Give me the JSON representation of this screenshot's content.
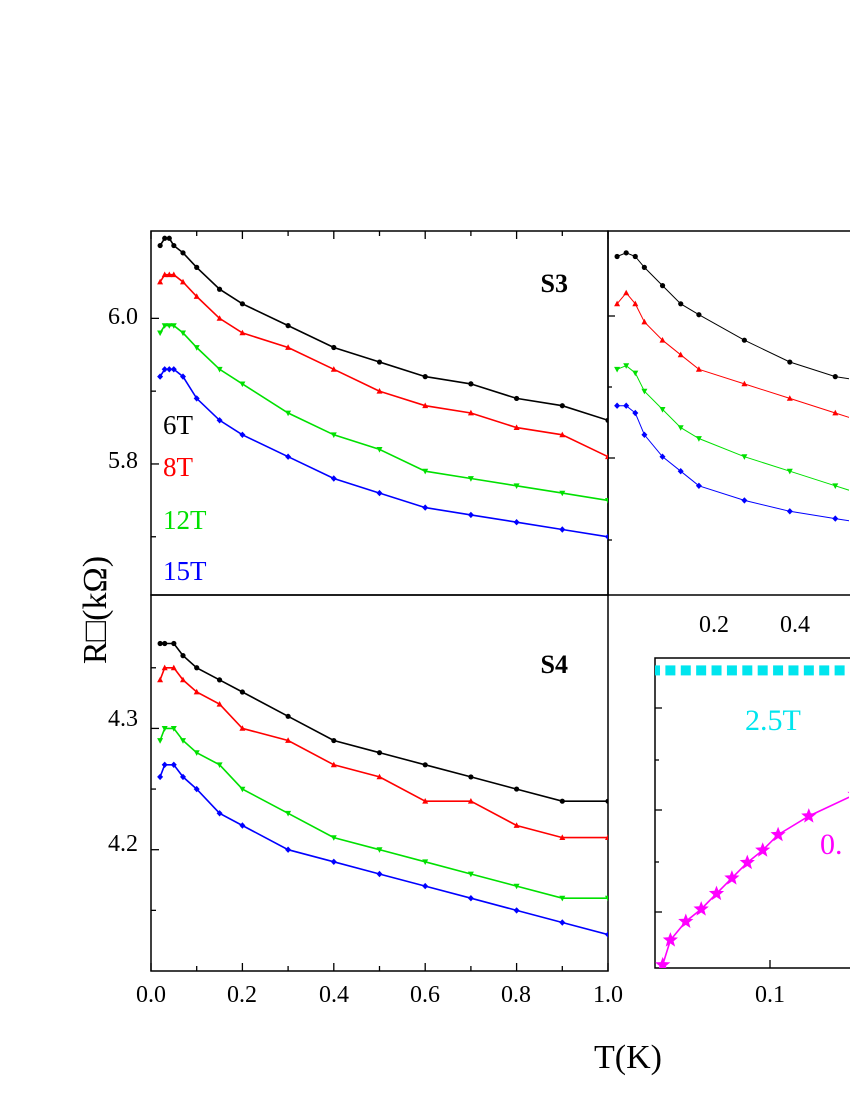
{
  "chart_data": [
    {
      "type": "line",
      "panel_label": "S3",
      "xlabel": "T(K)",
      "ylabel": "R□(kΩ)",
      "xlim": [
        0.0,
        1.0
      ],
      "ylim": [
        5.62,
        6.12
      ],
      "yticks": [
        "6.0",
        "5.8"
      ],
      "xticks": [
        "0.0",
        "0.2",
        "0.4",
        "0.6",
        "0.8",
        "1.0"
      ],
      "legend_position": "left",
      "series": [
        {
          "name": "6T",
          "color": "#000000",
          "marker": "circle",
          "x": [
            0.02,
            0.03,
            0.04,
            0.05,
            0.07,
            0.1,
            0.15,
            0.2,
            0.3,
            0.4,
            0.5,
            0.6,
            0.7,
            0.8,
            0.9,
            1.0
          ],
          "y": [
            6.1,
            6.11,
            6.11,
            6.1,
            6.09,
            6.07,
            6.04,
            6.02,
            5.99,
            5.96,
            5.94,
            5.92,
            5.91,
            5.89,
            5.88,
            5.86
          ]
        },
        {
          "name": "8T",
          "color": "#ff0000",
          "marker": "triangle-up",
          "x": [
            0.02,
            0.03,
            0.04,
            0.05,
            0.07,
            0.1,
            0.15,
            0.2,
            0.3,
            0.4,
            0.5,
            0.6,
            0.7,
            0.8,
            0.9,
            1.0
          ],
          "y": [
            6.05,
            6.06,
            6.06,
            6.06,
            6.05,
            6.03,
            6.0,
            5.98,
            5.96,
            5.93,
            5.9,
            5.88,
            5.87,
            5.85,
            5.84,
            5.81
          ]
        },
        {
          "name": "12T",
          "color": "#00e000",
          "marker": "triangle-down",
          "x": [
            0.02,
            0.03,
            0.04,
            0.05,
            0.07,
            0.1,
            0.15,
            0.2,
            0.3,
            0.4,
            0.5,
            0.6,
            0.7,
            0.8,
            0.9,
            1.0
          ],
          "y": [
            5.98,
            5.99,
            5.99,
            5.99,
            5.98,
            5.96,
            5.93,
            5.91,
            5.87,
            5.84,
            5.82,
            5.79,
            5.78,
            5.77,
            5.76,
            5.75
          ]
        },
        {
          "name": "15T",
          "color": "#0000ff",
          "marker": "diamond",
          "x": [
            0.02,
            0.03,
            0.04,
            0.05,
            0.07,
            0.1,
            0.15,
            0.2,
            0.3,
            0.4,
            0.5,
            0.6,
            0.7,
            0.8,
            0.9,
            1.0
          ],
          "y": [
            5.92,
            5.93,
            5.93,
            5.93,
            5.92,
            5.89,
            5.86,
            5.84,
            5.81,
            5.78,
            5.76,
            5.74,
            5.73,
            5.72,
            5.71,
            5.7
          ]
        }
      ]
    },
    {
      "type": "line",
      "panel_label": "S4",
      "xlim": [
        0.0,
        1.0
      ],
      "ylim": [
        4.1,
        4.41
      ],
      "yticks": [
        "4.3",
        "4.2"
      ],
      "series": [
        {
          "name": "6T",
          "color": "#000000",
          "marker": "circle",
          "x": [
            0.02,
            0.03,
            0.05,
            0.07,
            0.1,
            0.15,
            0.2,
            0.3,
            0.4,
            0.5,
            0.6,
            0.7,
            0.8,
            0.9,
            1.0
          ],
          "y": [
            4.37,
            4.37,
            4.37,
            4.36,
            4.35,
            4.34,
            4.33,
            4.31,
            4.29,
            4.28,
            4.27,
            4.26,
            4.25,
            4.24,
            4.24
          ]
        },
        {
          "name": "8T",
          "color": "#ff0000",
          "marker": "triangle-up",
          "x": [
            0.02,
            0.03,
            0.05,
            0.07,
            0.1,
            0.15,
            0.2,
            0.3,
            0.4,
            0.5,
            0.6,
            0.7,
            0.8,
            0.9,
            1.0
          ],
          "y": [
            4.34,
            4.35,
            4.35,
            4.34,
            4.33,
            4.32,
            4.3,
            4.29,
            4.27,
            4.26,
            4.24,
            4.24,
            4.22,
            4.21,
            4.21
          ]
        },
        {
          "name": "12T",
          "color": "#00e000",
          "marker": "triangle-down",
          "x": [
            0.02,
            0.03,
            0.05,
            0.07,
            0.1,
            0.15,
            0.2,
            0.3,
            0.4,
            0.5,
            0.6,
            0.7,
            0.8,
            0.9,
            1.0
          ],
          "y": [
            4.29,
            4.3,
            4.3,
            4.29,
            4.28,
            4.27,
            4.25,
            4.23,
            4.21,
            4.2,
            4.19,
            4.18,
            4.17,
            4.16,
            4.16
          ]
        },
        {
          "name": "15T",
          "color": "#0000ff",
          "marker": "diamond",
          "x": [
            0.02,
            0.03,
            0.05,
            0.07,
            0.1,
            0.15,
            0.2,
            0.3,
            0.4,
            0.5,
            0.6,
            0.7,
            0.8,
            0.9,
            1.0
          ],
          "y": [
            4.26,
            4.27,
            4.27,
            4.26,
            4.25,
            4.23,
            4.22,
            4.2,
            4.19,
            4.18,
            4.17,
            4.16,
            4.15,
            4.14,
            4.13
          ]
        }
      ]
    },
    {
      "type": "line",
      "panel_label": "",
      "xticks": [
        "0.2",
        "0.4"
      ],
      "xlim": [
        0.0,
        0.55
      ],
      "ylim": [
        0,
        1
      ],
      "series": [
        {
          "name": "6T",
          "color": "#000000",
          "marker": "circle",
          "x": [
            0.02,
            0.04,
            0.06,
            0.08,
            0.12,
            0.16,
            0.2,
            0.3,
            0.4,
            0.5,
            0.55
          ],
          "y": [
            0.93,
            0.94,
            0.93,
            0.9,
            0.85,
            0.8,
            0.77,
            0.7,
            0.64,
            0.6,
            0.59
          ]
        },
        {
          "name": "8T",
          "color": "#ff0000",
          "marker": "triangle-up",
          "x": [
            0.02,
            0.04,
            0.06,
            0.08,
            0.12,
            0.16,
            0.2,
            0.3,
            0.4,
            0.5,
            0.55
          ],
          "y": [
            0.8,
            0.83,
            0.8,
            0.75,
            0.7,
            0.66,
            0.62,
            0.58,
            0.54,
            0.5,
            0.48
          ]
        },
        {
          "name": "12T",
          "color": "#00e000",
          "marker": "triangle-down",
          "x": [
            0.02,
            0.04,
            0.06,
            0.08,
            0.12,
            0.16,
            0.2,
            0.3,
            0.4,
            0.5,
            0.55
          ],
          "y": [
            0.62,
            0.63,
            0.61,
            0.56,
            0.51,
            0.46,
            0.43,
            0.38,
            0.34,
            0.3,
            0.28
          ]
        },
        {
          "name": "15T",
          "color": "#0000ff",
          "marker": "diamond",
          "x": [
            0.02,
            0.04,
            0.06,
            0.08,
            0.12,
            0.16,
            0.2,
            0.3,
            0.4,
            0.5,
            0.55
          ],
          "y": [
            0.52,
            0.52,
            0.5,
            0.44,
            0.38,
            0.34,
            0.3,
            0.26,
            0.23,
            0.21,
            0.2
          ]
        }
      ]
    },
    {
      "type": "line",
      "panel_label": "",
      "xticks": [
        "0.1"
      ],
      "xlim": [
        0.02,
        0.15
      ],
      "ylim": [
        0,
        1
      ],
      "series": [
        {
          "name": "2.5T",
          "label": "2.5T",
          "color": "#00e5ee",
          "marker": "square",
          "x": [
            0.02,
            0.03,
            0.04,
            0.05,
            0.06,
            0.07,
            0.08,
            0.09,
            0.1,
            0.11,
            0.12,
            0.13,
            0.14,
            0.15
          ],
          "y": [
            0.96,
            0.96,
            0.96,
            0.96,
            0.96,
            0.96,
            0.96,
            0.96,
            0.96,
            0.96,
            0.96,
            0.96,
            0.96,
            0.96
          ]
        },
        {
          "name": "0.",
          "label": "0.",
          "color": "#ff00ff",
          "marker": "star",
          "x": [
            0.025,
            0.03,
            0.04,
            0.05,
            0.06,
            0.07,
            0.08,
            0.09,
            0.1,
            0.12,
            0.15
          ],
          "y": [
            0.01,
            0.09,
            0.15,
            0.19,
            0.24,
            0.29,
            0.34,
            0.38,
            0.43,
            0.49,
            0.56
          ]
        }
      ]
    }
  ]
}
